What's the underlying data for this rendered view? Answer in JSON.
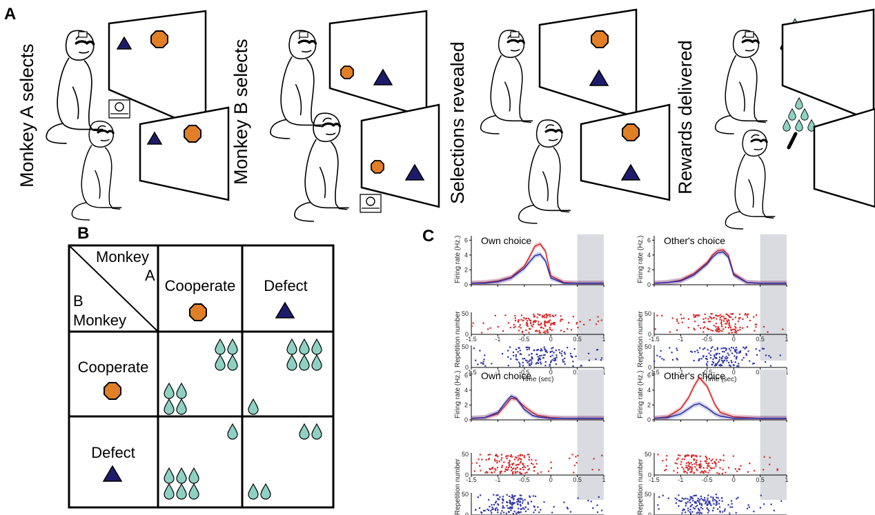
{
  "panels": {
    "a": "A",
    "b": "B",
    "c": "C"
  },
  "panel_a": {
    "stages": [
      "Monkey A selects",
      "Monkey B selects",
      "Selections revealed",
      "Rewards delivered"
    ]
  },
  "panel_b": {
    "corner_top": "Monkey",
    "corner_a": "A",
    "corner_b": "B",
    "corner_bottom": "Monkey",
    "col_headers": [
      "Cooperate",
      "Defect"
    ],
    "row_headers": [
      "Cooperate",
      "Defect"
    ],
    "payoffs": [
      {
        "row": 0,
        "col": 0,
        "a_drops": 4,
        "b_drops": 4
      },
      {
        "row": 0,
        "col": 1,
        "a_drops": 6,
        "b_drops": 1
      },
      {
        "row": 1,
        "col": 0,
        "a_drops": 1,
        "b_drops": 6
      },
      {
        "row": 1,
        "col": 1,
        "a_drops": 2,
        "b_drops": 2
      }
    ],
    "colors": {
      "cooperate_octagon": "#e07f25",
      "defect_triangle": "#1f1b6b",
      "drop": "#8ed1c3"
    }
  },
  "panel_c": {
    "titles": [
      "Own choice",
      "Other's choice",
      "Own choice",
      "Other's choice"
    ],
    "ylabel_rate": "Firing rate (Hz.)",
    "ylabel_raster": "Repetition number",
    "xlabel": "Time (sec)",
    "x_ticks": [
      "-1.5",
      "-1",
      "-0.5",
      "0",
      "0.5",
      "1"
    ],
    "rate_ticks": [
      "0",
      "2",
      "4",
      "6"
    ],
    "raster_ticks": [
      "0",
      "50"
    ],
    "colors": {
      "red": "#d42a2a",
      "blue": "#3034a6",
      "shade": "#d9dbe0"
    }
  },
  "chart_data": [
    {
      "type": "line",
      "title": "Own choice",
      "xlabel": "Time (sec)",
      "ylabel": "Firing rate (Hz.)",
      "xlim": [
        -1.5,
        1
      ],
      "ylim": [
        0,
        6.5
      ],
      "shaded_interval": [
        0.5,
        1
      ],
      "x": [
        -1.5,
        -1.25,
        -1,
        -0.75,
        -0.5,
        -0.4,
        -0.3,
        -0.2,
        -0.1,
        0,
        0.25,
        0.5,
        1
      ],
      "series": [
        {
          "values": [
            0.2,
            0.3,
            0.5,
            1.0,
            2.5,
            3.8,
            5.2,
            5.5,
            4.5,
            1.2,
            0.3,
            0.2,
            0.2
          ]
        },
        {
          "values": [
            0.2,
            0.2,
            0.4,
            0.9,
            2.2,
            3.1,
            3.9,
            4.1,
            3.2,
            0.9,
            0.2,
            0.2,
            0.2
          ]
        }
      ]
    },
    {
      "type": "line",
      "title": "Other's choice",
      "xlabel": "Time (sec)",
      "ylabel": "Firing rate (Hz.)",
      "xlim": [
        -1.5,
        1
      ],
      "ylim": [
        0,
        6.5
      ],
      "shaded_interval": [
        0.5,
        1
      ],
      "x": [
        -1.5,
        -1.25,
        -1,
        -0.75,
        -0.5,
        -0.4,
        -0.3,
        -0.2,
        -0.1,
        0,
        0.25,
        0.5,
        1
      ],
      "series": [
        {
          "values": [
            0.2,
            0.3,
            0.6,
            1.5,
            3.0,
            4.0,
            4.6,
            4.7,
            4.0,
            1.5,
            0.3,
            0.2,
            0.2
          ]
        },
        {
          "values": [
            0.2,
            0.3,
            0.5,
            1.3,
            2.8,
            3.7,
            4.3,
            4.4,
            3.7,
            1.3,
            0.3,
            0.2,
            0.2
          ]
        }
      ]
    },
    {
      "type": "line",
      "title": "Own choice",
      "xlabel": "Time (sec)",
      "ylabel": "Firing rate (Hz.)",
      "xlim": [
        -1.5,
        1
      ],
      "ylim": [
        0,
        6.5
      ],
      "shaded_interval": [
        0.5,
        1
      ],
      "x": [
        -1.5,
        -1.25,
        -1,
        -0.85,
        -0.75,
        -0.65,
        -0.5,
        -0.35,
        -0.25,
        0,
        0.25,
        0.5,
        1
      ],
      "series": [
        {
          "values": [
            0.2,
            0.3,
            0.8,
            2.0,
            2.9,
            2.8,
            1.8,
            1.0,
            0.6,
            0.3,
            0.2,
            0.2,
            0.2
          ]
        },
        {
          "values": [
            0.2,
            0.3,
            1.0,
            2.4,
            3.2,
            2.9,
            1.4,
            0.6,
            0.4,
            0.2,
            0.2,
            0.2,
            0.2
          ]
        }
      ]
    },
    {
      "type": "line",
      "title": "Other's choice",
      "xlabel": "Time (sec)",
      "ylabel": "Firing rate (Hz.)",
      "xlim": [
        -1.5,
        1
      ],
      "ylim": [
        0,
        6.5
      ],
      "shaded_interval": [
        0.5,
        1
      ],
      "x": [
        -1.5,
        -1.25,
        -1,
        -0.85,
        -0.75,
        -0.65,
        -0.5,
        -0.35,
        -0.25,
        0,
        0.25,
        0.5,
        1
      ],
      "series": [
        {
          "values": [
            0.2,
            0.4,
            1.5,
            3.0,
            4.5,
            5.7,
            4.5,
            2.0,
            1.0,
            0.4,
            0.3,
            0.2,
            0.2
          ]
        },
        {
          "values": [
            0.2,
            0.3,
            0.8,
            1.5,
            2.0,
            2.2,
            1.6,
            0.8,
            0.5,
            0.2,
            0.2,
            0.2,
            0.2
          ]
        }
      ]
    }
  ]
}
